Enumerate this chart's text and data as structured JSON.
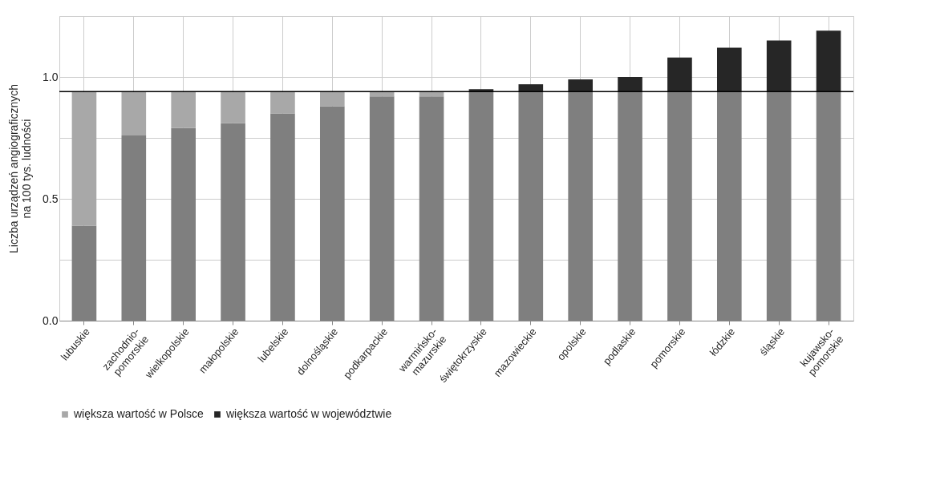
{
  "chart_data": {
    "type": "bar",
    "stacked": true,
    "ylabel": "Liczba urządzeń angiograficznych\nna 100 tys. ludności",
    "categories": [
      "lubuskie",
      "zachodnio-\npomorskie",
      "wielkopolskie",
      "małopolskie",
      "lubelskie",
      "dolnośląskie",
      "podkarpackie",
      "warmińsko-\nmazurskie",
      "świętokrzyskie",
      "mazowieckie",
      "opolskie",
      "podlaskie",
      "pomorskie",
      "łódzkie",
      "śląskie",
      "kujawsko-\npomorskie"
    ],
    "series": [
      {
        "color": "#7f7f7f",
        "values": [
          0.39,
          0.76,
          0.79,
          0.81,
          0.85,
          0.88,
          0.92,
          0.92,
          0.94,
          0.94,
          0.94,
          0.94,
          0.94,
          0.94,
          0.94,
          0.94
        ]
      },
      {
        "name": "większa wartość w Polsce",
        "color": "#a8a8a8",
        "values": [
          0.55,
          0.18,
          0.15,
          0.13,
          0.09,
          0.06,
          0.02,
          0.02,
          0,
          0,
          0,
          0,
          0,
          0,
          0,
          0
        ]
      },
      {
        "name": "większa wartość w województwie",
        "color": "#262626",
        "values": [
          0,
          0,
          0,
          0,
          0,
          0,
          0,
          0,
          0.01,
          0.03,
          0.05,
          0.06,
          0.14,
          0.18,
          0.21,
          0.25
        ]
      }
    ],
    "ylim": [
      0,
      1.25
    ],
    "yticks": [
      {
        "value": 0,
        "label": "0.0"
      },
      {
        "value": 0.25,
        "label": null
      },
      0.5,
      {
        "value": 0.75,
        "label": null
      },
      {
        "value": 1,
        "label": "1.0"
      },
      {
        "value": 1.25,
        "label": null
      }
    ],
    "ref_lines": [
      {
        "axis": "y",
        "value": 0.94,
        "color": "#000000"
      }
    ],
    "grid": true,
    "legend": "bottom"
  }
}
